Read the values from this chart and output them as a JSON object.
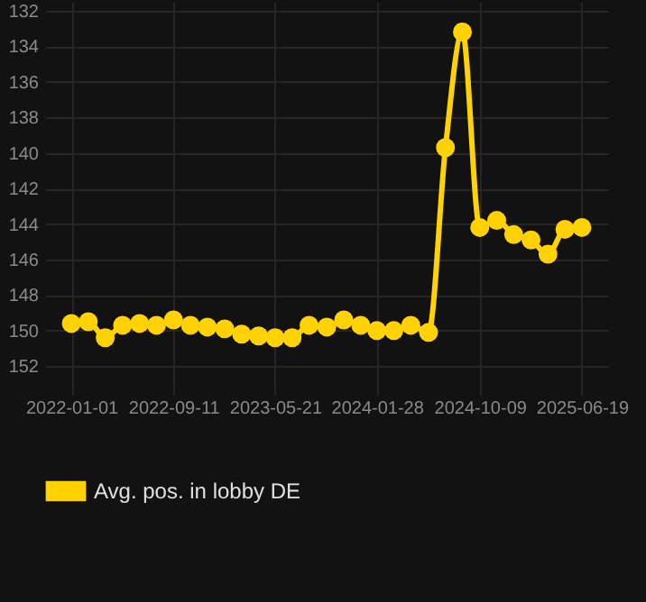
{
  "chart_data": {
    "type": "line",
    "x": [
      "2022-01-01",
      "2022-02-12",
      "2022-03-26",
      "2022-05-08",
      "2022-06-19",
      "2022-07-31",
      "2022-09-11",
      "2022-10-23",
      "2022-12-04",
      "2023-01-16",
      "2023-02-27",
      "2023-04-10",
      "2023-05-21",
      "2023-07-02",
      "2023-08-13",
      "2023-09-26",
      "2023-11-07",
      "2023-12-19",
      "2024-01-28",
      "2024-03-10",
      "2024-04-21",
      "2024-06-04",
      "2024-07-16",
      "2024-08-27",
      "2024-10-09",
      "2024-11-20",
      "2025-01-01",
      "2025-02-13",
      "2025-03-27",
      "2025-05-08",
      "2025-06-19"
    ],
    "series": [
      {
        "name": "Avg. pos. in lobby DE",
        "color": "#ffd200",
        "values": [
          149.6,
          149.5,
          150.4,
          149.7,
          149.6,
          149.7,
          149.4,
          149.7,
          149.8,
          149.9,
          150.2,
          150.3,
          150.4,
          150.4,
          149.7,
          149.8,
          149.4,
          149.7,
          150.0,
          150.0,
          149.7,
          150.1,
          139.7,
          133.2,
          144.2,
          143.8,
          144.6,
          144.9,
          145.7,
          144.3,
          144.2
        ]
      }
    ],
    "xlim": [
      "2021-10-28",
      "2025-08-23"
    ],
    "xticks": [
      "2022-01-01",
      "2022-09-11",
      "2023-05-21",
      "2024-01-28",
      "2024-10-09",
      "2025-06-19"
    ],
    "ylim": [
      153,
      131.5
    ],
    "yticks": [
      132,
      134,
      136,
      138,
      140,
      142,
      144,
      146,
      148,
      150,
      152
    ],
    "grid": true,
    "legend": "bottom",
    "marker": "circle",
    "line_style": "solid"
  }
}
